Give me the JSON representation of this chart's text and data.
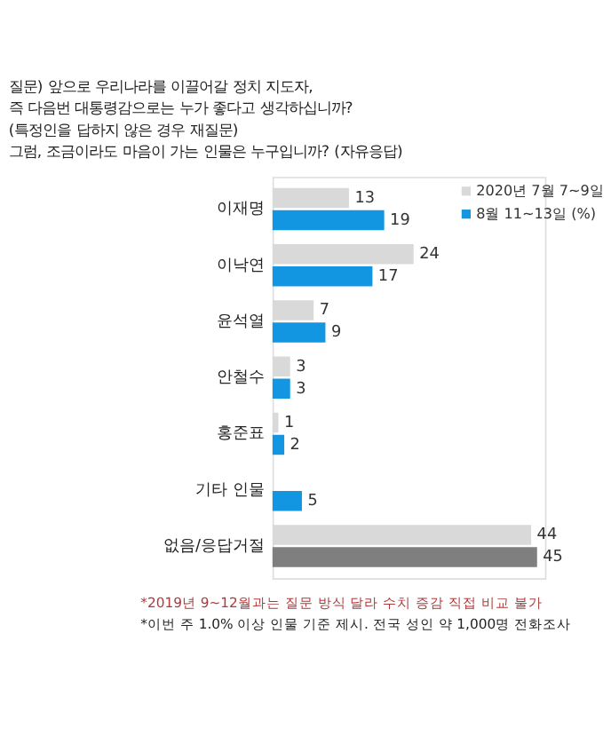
{
  "chart_data": {
    "type": "bar",
    "orientation": "horizontal",
    "title": "질문) 앞으로 우리나라를 이끌어갈 정치 지도자,\n즉 다음번 대통령감으로는 누가 좋다고 생각하십니까?\n(특정인을 답하지 않은 경우 재질문)\n그럼, 조금이라도 마음이 가는 인물은 누구입니까? (자유응답)",
    "categories": [
      "이재명",
      "이낙연",
      "윤석열",
      "안철수",
      "홍준표",
      "기타 인물",
      "없음/응답거절"
    ],
    "series": [
      {
        "name": "2020년 7월 7~9일",
        "color": "#d9d9d9",
        "values": [
          13,
          24,
          7,
          3,
          1,
          null,
          44
        ]
      },
      {
        "name": "8월 11~13일 (%)",
        "color": "#1396e2",
        "colors": [
          "#1396e2",
          "#1396e2",
          "#1396e2",
          "#1396e2",
          "#1396e2",
          "#1396e2",
          "#7f7f7f"
        ],
        "values": [
          19,
          17,
          9,
          3,
          2,
          5,
          45
        ]
      }
    ],
    "data_labels": true,
    "legend": "top right",
    "annotations": [
      "*2019년 9~12월과는 질문 방식 달라 수치 증감 직접 비교 불가",
      "*이번 주 1.0% 이상 인물 기준 제시. 전국 성인 약 1,000명 전화조사"
    ]
  }
}
